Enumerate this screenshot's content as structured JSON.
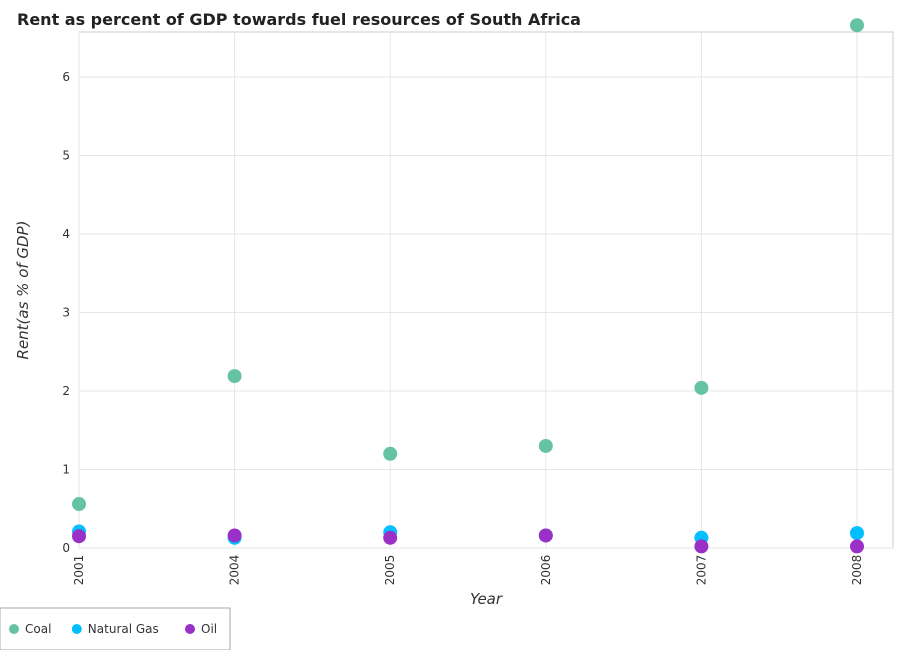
{
  "chart_data": {
    "type": "scatter",
    "title": "Rent as percent of GDP towards fuel resources of South Africa",
    "xlabel": "Year",
    "ylabel": "Rent(as % of GDP)",
    "categories": [
      "2001",
      "2004",
      "2005",
      "2006",
      "2007",
      "2008"
    ],
    "ylim": [
      0,
      7
    ],
    "yticks": [
      0,
      1,
      2,
      3,
      4,
      5,
      6
    ],
    "grid": true,
    "legend_position": "bottom-left",
    "series": [
      {
        "name": "Coal",
        "color": "#66c2a5",
        "values": [
          0.56,
          2.19,
          1.2,
          1.3,
          2.04,
          6.66
        ]
      },
      {
        "name": "Natural Gas",
        "color": "#00bfff",
        "values": [
          0.21,
          0.13,
          0.2,
          0.16,
          0.13,
          0.19
        ]
      },
      {
        "name": "Oil",
        "color": "#9b30c8",
        "values": [
          0.15,
          0.16,
          0.13,
          0.16,
          0.02,
          0.02
        ]
      }
    ]
  }
}
